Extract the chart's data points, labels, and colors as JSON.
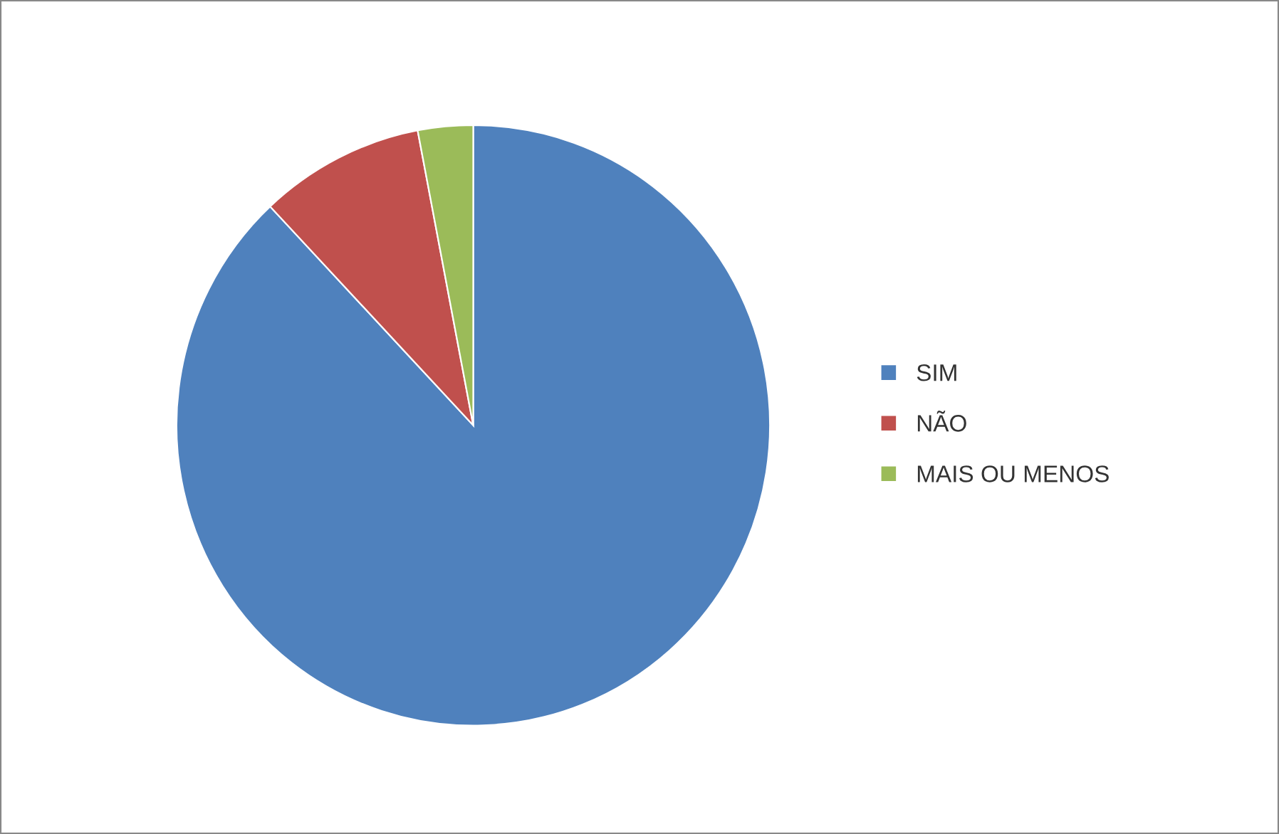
{
  "chart_data": {
    "type": "pie",
    "categories": [
      "SIM",
      "NÃO",
      "MAIS OU MENOS"
    ],
    "values": [
      88,
      9,
      3
    ],
    "colors": [
      "#4f81bd",
      "#c0504d",
      "#9bbb59"
    ],
    "legend": "right"
  }
}
